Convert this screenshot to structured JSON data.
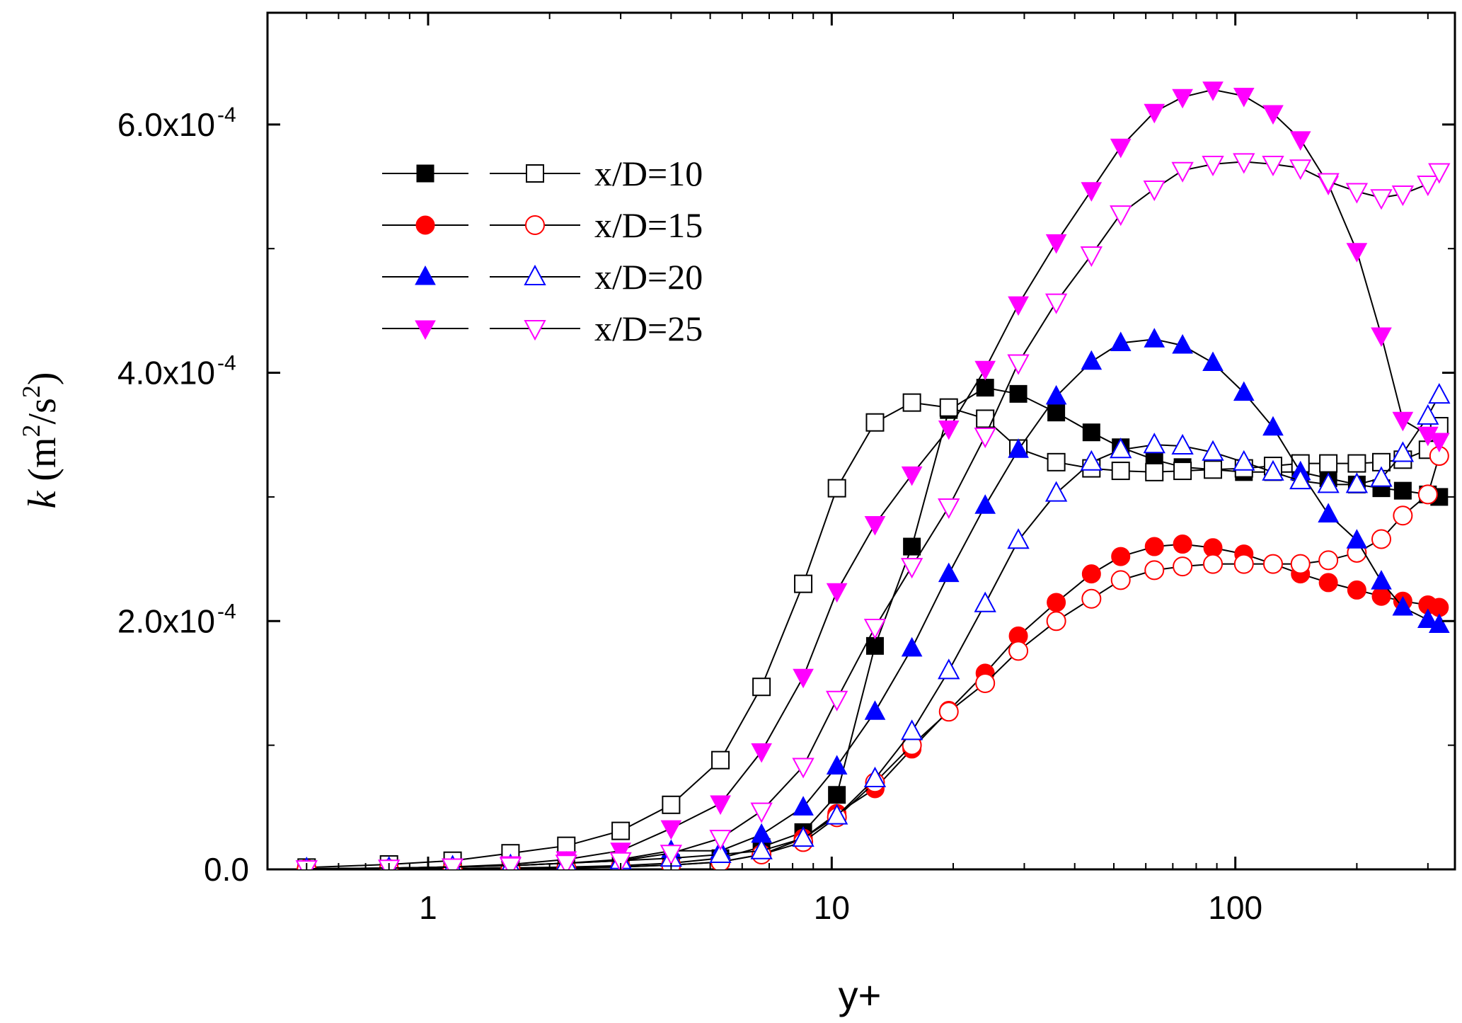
{
  "chart_data": {
    "type": "scatter",
    "title": "",
    "xlabel": "y+",
    "ylabel": {
      "symbol": "k",
      "units": "(m^2/s^2)",
      "unit_m": "m",
      "unit_s": "s",
      "power": "2",
      "open": "(",
      "slash": "/",
      "close": ")"
    },
    "xscale": "log",
    "xlim": [
      0.4,
      350
    ],
    "ylim": [
      0,
      0.00069
    ],
    "xticks": [
      {
        "value": 1,
        "label": "1"
      },
      {
        "value": 10,
        "label": "10"
      },
      {
        "value": 100,
        "label": "100"
      }
    ],
    "yticks": [
      {
        "value": 0,
        "mant": "0.0",
        "exp": ""
      },
      {
        "value": 0.0002,
        "mant": "2.0x10",
        "exp": "-4"
      },
      {
        "value": 0.0004,
        "mant": "4.0x10",
        "exp": "-4"
      },
      {
        "value": 0.0006,
        "mant": "6.0x10",
        "exp": "-4"
      }
    ],
    "y_minor_ticks": [
      0.0001,
      0.0003,
      0.0005
    ],
    "legend_position": "upper-left",
    "colors": {
      "x10": "#000000",
      "x15": "#ff0000",
      "x20": "#0000ff",
      "x25": "#ff00ff",
      "line": "#000000"
    },
    "series": [
      {
        "name": "x/D=10 (filled)",
        "legend": "x/D=10",
        "key": "x10",
        "marker": "square",
        "fill": true,
        "x": [
          0.5,
          0.8,
          1.15,
          1.6,
          2.2,
          3.0,
          4.0,
          5.3,
          6.7,
          8.5,
          10.3,
          12.8,
          15.8,
          19.5,
          24,
          29,
          36,
          44,
          52,
          63,
          74,
          88,
          105,
          124,
          145,
          170,
          200,
          230,
          260,
          300,
          320
        ],
        "y": [
          3e-07,
          5e-07,
          8e-07,
          1.2e-06,
          1.8e-06,
          3e-06,
          5e-06,
          9e-06,
          1.8e-05,
          3e-05,
          6e-05,
          0.00018,
          0.00026,
          0.00037,
          0.000388,
          0.000383,
          0.000368,
          0.000352,
          0.00034,
          0.00033,
          0.000324,
          0.000322,
          0.00032,
          0.00032,
          0.00032,
          0.000315,
          0.00031,
          0.000307,
          0.000305,
          0.000302,
          0.0003
        ]
      },
      {
        "name": "x/D=10 (open)",
        "legend": "",
        "key": "x10",
        "marker": "square",
        "fill": false,
        "x": [
          0.5,
          0.8,
          1.15,
          1.6,
          2.2,
          3.0,
          4.0,
          5.3,
          6.7,
          8.5,
          10.3,
          12.8,
          15.8,
          19.5,
          24,
          29,
          36,
          44,
          52,
          63,
          74,
          88,
          105,
          124,
          145,
          170,
          200,
          230,
          260,
          300,
          320
        ],
        "y": [
          1.5e-06,
          4e-06,
          7e-06,
          1.3e-05,
          1.9e-05,
          3.1e-05,
          5.2e-05,
          8.8e-05,
          0.000147,
          0.00023,
          0.000307,
          0.00036,
          0.000376,
          0.000372,
          0.000363,
          0.000339,
          0.000328,
          0.000323,
          0.000321,
          0.00032,
          0.000321,
          0.000322,
          0.000323,
          0.000325,
          0.000327,
          0.000327,
          0.000327,
          0.000328,
          0.00033,
          0.000338,
          0.000357
        ]
      },
      {
        "name": "x/D=15 (filled)",
        "legend": "x/D=15",
        "key": "x15",
        "marker": "circle",
        "fill": true,
        "x": [
          0.5,
          0.8,
          1.15,
          1.6,
          2.2,
          3.0,
          4.0,
          5.3,
          6.7,
          8.5,
          10.3,
          12.8,
          15.8,
          19.5,
          24,
          29,
          36,
          44,
          52,
          63,
          74,
          88,
          105,
          124,
          145,
          170,
          200,
          230,
          260,
          300,
          320
        ],
        "y": [
          2e-07,
          3e-07,
          5e-07,
          8e-07,
          1.2e-06,
          2e-06,
          3.5e-06,
          6e-06,
          1.2e-05,
          2.5e-05,
          4.5e-05,
          6.5e-05,
          9.7e-05,
          0.000128,
          0.000158,
          0.000188,
          0.000215,
          0.000238,
          0.000252,
          0.00026,
          0.000262,
          0.000259,
          0.000254,
          0.000246,
          0.000238,
          0.000231,
          0.000225,
          0.00022,
          0.000216,
          0.000213,
          0.000211
        ]
      },
      {
        "name": "x/D=15 (open)",
        "legend": "",
        "key": "x15",
        "marker": "circle",
        "fill": false,
        "x": [
          0.5,
          0.8,
          1.15,
          1.6,
          2.2,
          3.0,
          4.0,
          5.3,
          6.7,
          8.5,
          10.3,
          12.8,
          15.8,
          19.5,
          24,
          29,
          36,
          44,
          52,
          63,
          74,
          88,
          105,
          124,
          145,
          170,
          200,
          230,
          260,
          300,
          320
        ],
        "y": [
          2e-07,
          3e-07,
          5e-07,
          8e-07,
          1.2e-06,
          2e-06,
          3.5e-06,
          6e-06,
          1.2e-05,
          2.2e-05,
          4.2e-05,
          7e-05,
          0.0001,
          0.000127,
          0.00015,
          0.000176,
          0.0002,
          0.000218,
          0.000233,
          0.000241,
          0.000244,
          0.000246,
          0.000246,
          0.000246,
          0.000246,
          0.000249,
          0.000255,
          0.000266,
          0.000285,
          0.000302,
          0.000333
        ]
      },
      {
        "name": "x/D=20 (filled)",
        "legend": "x/D=20",
        "key": "x20",
        "marker": "triangle-up",
        "fill": true,
        "x": [
          0.5,
          0.8,
          1.15,
          1.6,
          2.2,
          3.0,
          4.0,
          5.3,
          6.7,
          8.5,
          10.3,
          12.8,
          15.8,
          19.5,
          24,
          29,
          36,
          44,
          52,
          63,
          74,
          88,
          105,
          124,
          145,
          170,
          200,
          230,
          260,
          300,
          320
        ],
        "y": [
          5e-07,
          1e-06,
          2e-06,
          3e-06,
          5e-06,
          8e-06,
          1.5e-05,
          1.5e-05,
          2.8e-05,
          5e-05,
          8.3e-05,
          0.000127,
          0.000178,
          0.000238,
          0.000293,
          0.000338,
          0.000381,
          0.000409,
          0.000424,
          0.000427,
          0.000422,
          0.000408,
          0.000384,
          0.000356,
          0.00032,
          0.000286,
          0.000265,
          0.000232,
          0.000211,
          0.000201,
          0.000197
        ]
      },
      {
        "name": "x/D=20 (open)",
        "legend": "",
        "key": "x20",
        "marker": "triangle-up",
        "fill": false,
        "x": [
          0.5,
          0.8,
          1.15,
          1.6,
          2.2,
          3.0,
          4.0,
          5.3,
          6.7,
          8.5,
          10.3,
          12.8,
          15.8,
          19.5,
          24,
          29,
          36,
          44,
          52,
          63,
          74,
          88,
          105,
          124,
          145,
          170,
          200,
          230,
          260,
          300,
          320
        ],
        "y": [
          5e-07,
          1e-06,
          2e-06,
          3e-06,
          5e-06,
          7e-06,
          9e-06,
          1.2e-05,
          1.5e-05,
          2.5e-05,
          4.3e-05,
          7.3e-05,
          0.000111,
          0.00016,
          0.000214,
          0.000265,
          0.000303,
          0.000328,
          0.000338,
          0.000342,
          0.000341,
          0.000336,
          0.000328,
          0.00032,
          0.000313,
          0.00031,
          0.00031,
          0.000315,
          0.000335,
          0.000365,
          0.000382
        ]
      },
      {
        "name": "x/D=25 (filled)",
        "legend": "x/D=25",
        "key": "x25",
        "marker": "triangle-down",
        "fill": true,
        "x": [
          0.5,
          0.8,
          1.15,
          1.6,
          2.2,
          3.0,
          4.0,
          5.3,
          6.7,
          8.5,
          10.3,
          12.8,
          15.8,
          19.5,
          24,
          29,
          36,
          44,
          52,
          63,
          74,
          88,
          105,
          124,
          145,
          170,
          200,
          230,
          260,
          300,
          320
        ],
        "y": [
          5e-07,
          1e-06,
          2e-06,
          4e-06,
          8e-06,
          1.5e-05,
          3.3e-05,
          5.3e-05,
          9.5e-05,
          0.000155,
          0.000224,
          0.000278,
          0.000318,
          0.000355,
          0.000403,
          0.000455,
          0.000505,
          0.000547,
          0.000582,
          0.00061,
          0.000622,
          0.000628,
          0.000623,
          0.000609,
          0.000588,
          0.000552,
          0.000498,
          0.00043,
          0.000362,
          0.00035,
          0.000345
        ]
      },
      {
        "name": "x/D=25 (open)",
        "legend": "",
        "key": "x25",
        "marker": "triangle-down",
        "fill": false,
        "x": [
          0.5,
          0.8,
          1.15,
          1.6,
          2.2,
          3.0,
          4.0,
          5.3,
          6.7,
          8.5,
          10.3,
          12.8,
          15.8,
          19.5,
          24,
          29,
          36,
          44,
          52,
          63,
          74,
          88,
          105,
          124,
          145,
          170,
          200,
          230,
          260,
          300,
          320
        ],
        "y": [
          5e-07,
          1e-06,
          2e-06,
          3e-06,
          5e-06,
          7e-06,
          1.3e-05,
          2.5e-05,
          4.7e-05,
          8.3e-05,
          0.000137,
          0.000195,
          0.000244,
          0.000292,
          0.000349,
          0.000408,
          0.000457,
          0.000495,
          0.000528,
          0.000548,
          0.000563,
          0.000568,
          0.00057,
          0.000568,
          0.000565,
          0.000554,
          0.000546,
          0.000541,
          0.000544,
          0.000552,
          0.000562
        ]
      }
    ]
  }
}
